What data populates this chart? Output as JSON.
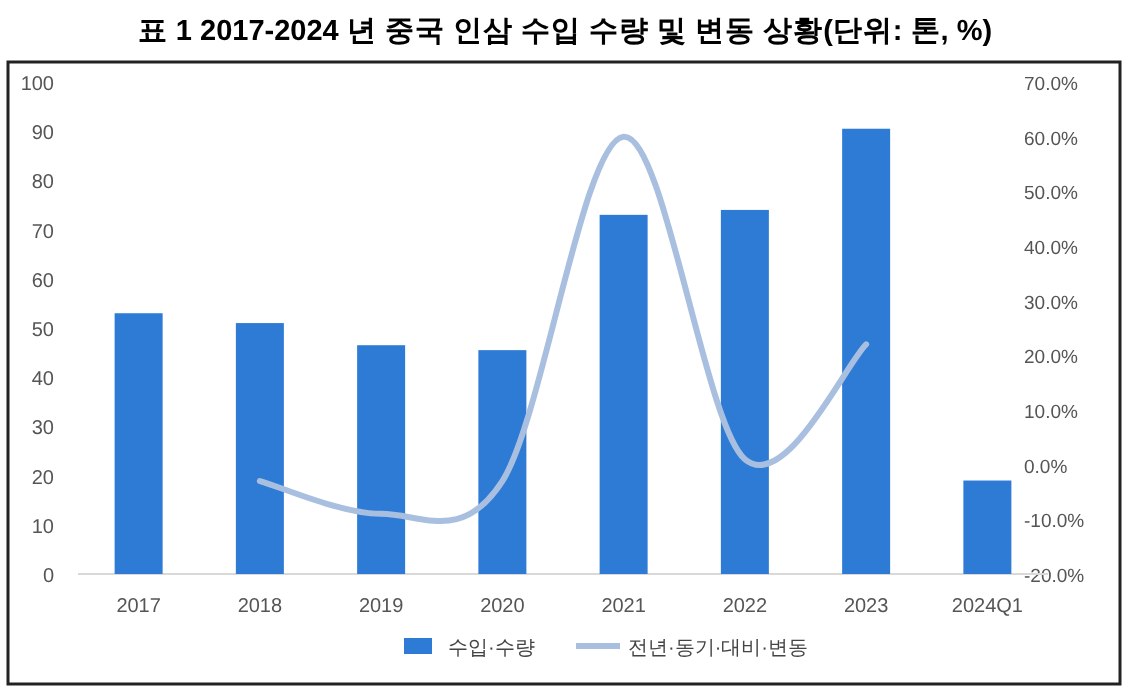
{
  "chart_data": {
    "type": "bar",
    "title": "표 1   2017-2024 년 중국 인삼 수입 수량 및 변동 상황(단위: 톤, %)",
    "categories": [
      "2017",
      "2018",
      "2019",
      "2020",
      "2021",
      "2022",
      "2023",
      "2024Q1"
    ],
    "series": [
      {
        "name": "수입·수량",
        "color": "#2e7bd6",
        "values": [
          53,
          51,
          46.5,
          45.5,
          73,
          74,
          90.5,
          19
        ]
      },
      {
        "name": "전년·동기·대비·변동",
        "type": "line",
        "axis": "y2",
        "color": "#a9bfe0",
        "values": [
          null,
          -3,
          -9,
          -3,
          60,
          1,
          22,
          null
        ]
      }
    ],
    "ylim": [
      0,
      100
    ],
    "yticks": [
      0,
      10,
      20,
      30,
      40,
      50,
      60,
      70,
      80,
      90,
      100
    ],
    "y2lim": [
      -20,
      70
    ],
    "y2ticks": [
      {
        "value": -20,
        "label": "-20.0%"
      },
      {
        "value": -10,
        "label": "-10.0%"
      },
      {
        "value": 0,
        "label": "0.0%"
      },
      {
        "value": 10,
        "label": "10.0%"
      },
      {
        "value": 20,
        "label": "20.0%"
      },
      {
        "value": 30,
        "label": "30.0%"
      },
      {
        "value": 40,
        "label": "40.0%"
      },
      {
        "value": 50,
        "label": "50.0%"
      },
      {
        "value": 60,
        "label": "60.0%"
      },
      {
        "value": 70,
        "label": "70.0%"
      }
    ],
    "grid": false,
    "legend": "bottom"
  }
}
